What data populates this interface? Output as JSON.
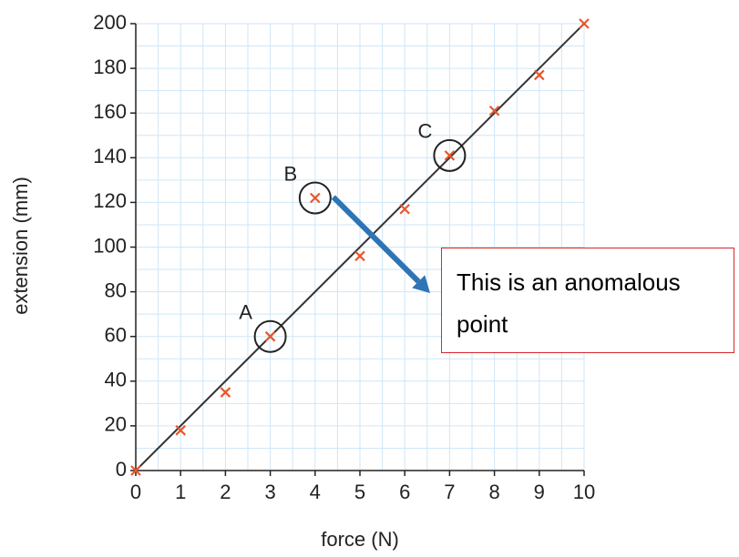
{
  "chart_data": {
    "type": "scatter",
    "x_label": "force (N)",
    "y_label": "extension (mm)",
    "xlim": [
      0,
      10
    ],
    "ylim": [
      0,
      200
    ],
    "xticks": [
      0,
      1,
      2,
      3,
      4,
      5,
      6,
      7,
      8,
      9,
      10
    ],
    "yticks": [
      0,
      20,
      40,
      60,
      80,
      100,
      120,
      140,
      160,
      180,
      200
    ],
    "grid": true,
    "grid_color": "#cfe6f7",
    "points": {
      "x": [
        0,
        1,
        2,
        3,
        4,
        5,
        6,
        7,
        8,
        9,
        10
      ],
      "y": [
        0,
        18,
        35,
        60,
        122,
        96,
        117,
        141,
        161,
        177,
        200
      ],
      "color": "#e8572a"
    },
    "best_fit": {
      "x": [
        0,
        10
      ],
      "y": [
        0,
        200
      ],
      "color": "#333333"
    },
    "annotations": [
      {
        "text": "A",
        "point": 3
      },
      {
        "text": "B",
        "point": 4
      },
      {
        "text": "C",
        "point": 7
      }
    ],
    "callout": {
      "text": "This is an anomalous point",
      "point": 4,
      "border_color": "#d9262b",
      "arrow_color": "#2e75b6"
    }
  }
}
